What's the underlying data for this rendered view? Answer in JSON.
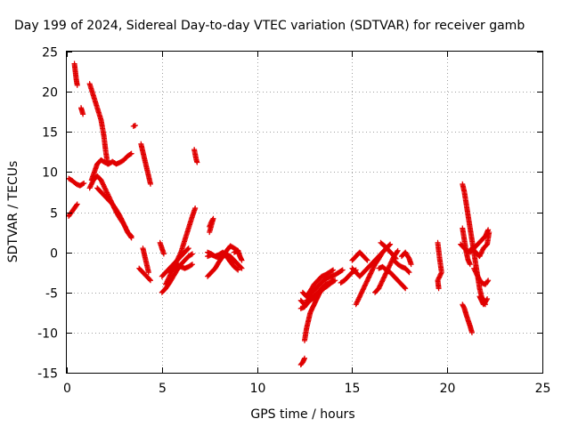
{
  "chart_data": {
    "type": "scatter",
    "title": "Day 199 of 2024, Sidereal Day-to-day VTEC variation (SDTVAR) for receiver gamb",
    "xlabel": "GPS time / hours",
    "ylabel": "SDTVAR / TECUs",
    "xlim": [
      0,
      25
    ],
    "ylim": [
      -15,
      25
    ],
    "xticks": [
      "0",
      "5",
      "10",
      "15",
      "20",
      "25"
    ],
    "yticks": [
      "-15",
      "-10",
      "-5",
      "0",
      "5",
      "10",
      "15",
      "20",
      "25"
    ],
    "grid": true,
    "marker": "+",
    "color": "#e00000",
    "segments": [
      [
        [
          0.4,
          23.5
        ],
        [
          0.45,
          22.5
        ],
        [
          0.5,
          21.5
        ],
        [
          0.55,
          20.8
        ]
      ],
      [
        [
          0.75,
          18.0
        ],
        [
          0.85,
          17.2
        ]
      ],
      [
        [
          0.1,
          9.2
        ],
        [
          0.3,
          8.9
        ],
        [
          0.5,
          8.5
        ],
        [
          0.7,
          8.3
        ],
        [
          0.9,
          8.6
        ]
      ],
      [
        [
          0.1,
          4.5
        ],
        [
          0.25,
          5.0
        ],
        [
          0.4,
          5.5
        ],
        [
          0.55,
          6.0
        ]
      ],
      [
        [
          1.2,
          21.0
        ],
        [
          1.4,
          19.5
        ],
        [
          1.6,
          18.0
        ],
        [
          1.8,
          16.5
        ],
        [
          1.95,
          14.5
        ],
        [
          2.05,
          12.5
        ],
        [
          2.15,
          11.0
        ]
      ],
      [
        [
          1.3,
          9.0
        ],
        [
          1.45,
          10.0
        ],
        [
          1.6,
          11.0
        ],
        [
          1.8,
          11.5
        ],
        [
          2.0,
          11.2
        ],
        [
          2.2,
          11.0
        ],
        [
          2.4,
          11.3
        ],
        [
          2.6,
          11.0
        ],
        [
          2.8,
          11.2
        ],
        [
          3.0,
          11.5
        ],
        [
          3.2,
          12.0
        ],
        [
          3.4,
          12.3
        ]
      ],
      [
        [
          1.2,
          8.0
        ],
        [
          1.4,
          9.0
        ],
        [
          1.6,
          9.5
        ],
        [
          1.8,
          9.0
        ],
        [
          2.0,
          8.0
        ],
        [
          2.2,
          7.0
        ],
        [
          2.4,
          6.0
        ],
        [
          2.6,
          5.0
        ],
        [
          2.8,
          4.2
        ],
        [
          3.0,
          3.5
        ],
        [
          3.2,
          2.5
        ],
        [
          3.4,
          1.8
        ]
      ],
      [
        [
          1.6,
          8.0
        ],
        [
          1.8,
          7.5
        ],
        [
          2.0,
          7.0
        ],
        [
          2.2,
          6.5
        ],
        [
          2.4,
          6.0
        ],
        [
          2.6,
          5.3
        ],
        [
          2.8,
          4.5
        ],
        [
          3.0,
          3.5
        ],
        [
          3.2,
          2.5
        ],
        [
          3.4,
          2.0
        ]
      ],
      [
        [
          3.5,
          15.7
        ],
        [
          3.6,
          15.8
        ]
      ],
      [
        [
          3.9,
          13.5
        ],
        [
          4.0,
          12.5
        ],
        [
          4.1,
          11.5
        ],
        [
          4.2,
          10.5
        ],
        [
          4.3,
          9.5
        ],
        [
          4.4,
          8.5
        ]
      ],
      [
        [
          3.8,
          -2.0
        ],
        [
          4.0,
          -2.5
        ],
        [
          4.2,
          -3.0
        ],
        [
          4.4,
          -3.5
        ]
      ],
      [
        [
          4.0,
          0.5
        ],
        [
          4.1,
          -0.5
        ],
        [
          4.2,
          -1.5
        ],
        [
          4.3,
          -2.5
        ]
      ],
      [
        [
          4.9,
          1.2
        ],
        [
          5.0,
          0.5
        ],
        [
          5.1,
          -0.2
        ]
      ],
      [
        [
          5.0,
          -5.0
        ],
        [
          5.2,
          -4.5
        ],
        [
          5.4,
          -3.8
        ],
        [
          5.6,
          -3.0
        ],
        [
          5.8,
          -2.2
        ],
        [
          6.0,
          -1.5
        ],
        [
          6.2,
          -1.0
        ],
        [
          6.4,
          -0.5
        ],
        [
          6.6,
          -0.2
        ]
      ],
      [
        [
          5.0,
          -3.0
        ],
        [
          5.2,
          -2.5
        ],
        [
          5.4,
          -2.0
        ],
        [
          5.6,
          -1.5
        ],
        [
          5.8,
          -1.0
        ],
        [
          6.0,
          -0.5
        ],
        [
          6.2,
          0.0
        ],
        [
          6.4,
          0.5
        ]
      ],
      [
        [
          5.2,
          -4.0
        ],
        [
          5.4,
          -3.0
        ],
        [
          5.6,
          -2.0
        ],
        [
          5.8,
          -1.0
        ],
        [
          6.0,
          0.0
        ],
        [
          6.2,
          1.5
        ],
        [
          6.4,
          3.0
        ],
        [
          6.6,
          4.5
        ],
        [
          6.75,
          5.5
        ]
      ],
      [
        [
          5.4,
          -2.5
        ],
        [
          5.6,
          -2.0
        ],
        [
          5.8,
          -1.5
        ],
        [
          6.0,
          -1.8
        ],
        [
          6.2,
          -2.0
        ],
        [
          6.4,
          -1.8
        ],
        [
          6.6,
          -1.5
        ]
      ],
      [
        [
          6.7,
          12.8
        ],
        [
          6.75,
          12.2
        ],
        [
          6.8,
          11.6
        ],
        [
          6.85,
          11.2
        ]
      ],
      [
        [
          7.5,
          3.2
        ],
        [
          7.6,
          3.8
        ],
        [
          7.7,
          4.2
        ],
        [
          7.5,
          2.5
        ]
      ],
      [
        [
          7.4,
          -3.0
        ],
        [
          7.6,
          -2.5
        ],
        [
          7.8,
          -2.0
        ],
        [
          8.0,
          -1.2
        ],
        [
          8.2,
          -0.5
        ],
        [
          8.4,
          0.2
        ],
        [
          8.6,
          0.8
        ],
        [
          8.8,
          0.5
        ],
        [
          9.0,
          0.2
        ]
      ],
      [
        [
          7.4,
          -0.5
        ],
        [
          7.6,
          -0.3
        ],
        [
          7.8,
          -0.5
        ],
        [
          8.0,
          -0.7
        ],
        [
          8.2,
          -0.5
        ],
        [
          8.4,
          -0.3
        ],
        [
          8.6,
          -0.5
        ],
        [
          8.8,
          -1.0
        ],
        [
          9.0,
          -1.5
        ],
        [
          9.2,
          -2.0
        ]
      ],
      [
        [
          7.4,
          0.0
        ],
        [
          7.6,
          -0.2
        ],
        [
          7.8,
          -0.5
        ],
        [
          8.0,
          -0.3
        ],
        [
          8.2,
          0.0
        ],
        [
          8.4,
          -0.5
        ],
        [
          8.6,
          -1.2
        ],
        [
          8.8,
          -1.8
        ],
        [
          9.0,
          -2.2
        ]
      ],
      [
        [
          8.8,
          0.0
        ],
        [
          9.0,
          0.2
        ],
        [
          9.1,
          -0.5
        ],
        [
          9.2,
          -1.0
        ]
      ],
      [
        [
          12.3,
          -14.0
        ],
        [
          12.4,
          -13.7
        ],
        [
          12.5,
          -13.2
        ]
      ],
      [
        [
          12.5,
          -11.0
        ],
        [
          12.6,
          -9.5
        ],
        [
          12.7,
          -8.5
        ],
        [
          12.8,
          -7.5
        ],
        [
          12.9,
          -7.0
        ],
        [
          13.0,
          -6.5
        ],
        [
          13.1,
          -6.0
        ],
        [
          13.2,
          -5.5
        ],
        [
          13.3,
          -5.0
        ],
        [
          13.4,
          -4.8
        ]
      ],
      [
        [
          12.3,
          -6.0
        ],
        [
          12.5,
          -6.5
        ],
        [
          12.7,
          -6.0
        ],
        [
          12.9,
          -5.0
        ],
        [
          13.1,
          -4.5
        ],
        [
          13.3,
          -4.0
        ],
        [
          13.5,
          -3.5
        ],
        [
          13.7,
          -3.2
        ],
        [
          13.9,
          -3.0
        ],
        [
          14.1,
          -2.8
        ],
        [
          14.3,
          -2.5
        ],
        [
          14.5,
          -2.2
        ]
      ],
      [
        [
          12.3,
          -7.0
        ],
        [
          12.5,
          -6.8
        ],
        [
          12.7,
          -6.2
        ],
        [
          12.9,
          -5.8
        ],
        [
          13.1,
          -5.5
        ],
        [
          13.3,
          -5.0
        ],
        [
          13.5,
          -4.5
        ],
        [
          13.7,
          -4.2
        ],
        [
          13.9,
          -3.8
        ],
        [
          14.1,
          -3.5
        ]
      ],
      [
        [
          12.4,
          -5.0
        ],
        [
          12.6,
          -5.5
        ],
        [
          12.8,
          -4.8
        ],
        [
          13.0,
          -4.0
        ],
        [
          13.2,
          -3.5
        ],
        [
          13.4,
          -3.0
        ],
        [
          13.6,
          -2.8
        ],
        [
          13.8,
          -2.5
        ],
        [
          14.0,
          -2.2
        ]
      ],
      [
        [
          12.6,
          -6.0
        ],
        [
          12.8,
          -5.8
        ],
        [
          13.0,
          -5.5
        ],
        [
          13.2,
          -5.0
        ],
        [
          13.4,
          -4.5
        ],
        [
          13.6,
          -4.0
        ],
        [
          13.8,
          -3.8
        ],
        [
          14.0,
          -3.5
        ]
      ],
      [
        [
          14.4,
          -3.8
        ],
        [
          14.6,
          -3.5
        ],
        [
          14.8,
          -3.0
        ],
        [
          15.0,
          -2.5
        ],
        [
          15.2,
          -2.2
        ]
      ],
      [
        [
          15.0,
          -1.0
        ],
        [
          15.2,
          -0.5
        ],
        [
          15.4,
          0.0
        ],
        [
          15.6,
          -0.5
        ],
        [
          15.8,
          -1.0
        ]
      ],
      [
        [
          15.0,
          -2.0
        ],
        [
          15.2,
          -2.5
        ],
        [
          15.4,
          -3.0
        ],
        [
          15.6,
          -2.5
        ],
        [
          15.8,
          -2.0
        ],
        [
          16.0,
          -1.5
        ],
        [
          16.2,
          -1.0
        ],
        [
          16.4,
          -0.5
        ],
        [
          16.6,
          0.0
        ],
        [
          16.8,
          0.5
        ],
        [
          17.0,
          1.0
        ]
      ],
      [
        [
          15.2,
          -6.5
        ],
        [
          15.4,
          -5.5
        ],
        [
          15.6,
          -4.5
        ],
        [
          15.8,
          -3.5
        ],
        [
          16.0,
          -2.5
        ],
        [
          16.2,
          -1.5
        ],
        [
          16.4,
          -0.8
        ],
        [
          16.6,
          0.0
        ],
        [
          16.8,
          0.5
        ]
      ],
      [
        [
          16.2,
          -5.0
        ],
        [
          16.4,
          -4.5
        ],
        [
          16.6,
          -3.5
        ],
        [
          16.8,
          -2.5
        ],
        [
          17.0,
          -1.5
        ],
        [
          17.2,
          -0.5
        ],
        [
          17.4,
          0.2
        ]
      ],
      [
        [
          16.4,
          -2.0
        ],
        [
          16.6,
          -1.8
        ],
        [
          16.8,
          -2.2
        ],
        [
          17.0,
          -2.5
        ],
        [
          17.2,
          -3.0
        ],
        [
          17.4,
          -3.5
        ],
        [
          17.6,
          -4.0
        ],
        [
          17.8,
          -4.5
        ]
      ],
      [
        [
          16.5,
          1.2
        ],
        [
          16.7,
          0.8
        ],
        [
          16.9,
          0.3
        ],
        [
          17.1,
          -0.2
        ],
        [
          17.3,
          -0.8
        ]
      ],
      [
        [
          17.2,
          -1.0
        ],
        [
          17.4,
          -1.5
        ],
        [
          17.6,
          -1.8
        ],
        [
          17.8,
          -2.0
        ],
        [
          18.0,
          -2.5
        ]
      ],
      [
        [
          17.6,
          -0.5
        ],
        [
          17.8,
          0.0
        ],
        [
          18.0,
          -0.8
        ],
        [
          18.1,
          -1.5
        ]
      ],
      [
        [
          19.5,
          1.2
        ],
        [
          19.6,
          -0.8
        ],
        [
          19.7,
          -2.5
        ],
        [
          19.5,
          -3.5
        ],
        [
          19.55,
          -4.5
        ]
      ],
      [
        [
          20.8,
          8.5
        ],
        [
          20.9,
          7.5
        ],
        [
          21.0,
          6.0
        ],
        [
          21.1,
          4.5
        ],
        [
          21.2,
          3.0
        ],
        [
          21.3,
          1.5
        ],
        [
          21.4,
          0.0
        ],
        [
          21.5,
          -1.5
        ],
        [
          21.6,
          -3.0
        ],
        [
          21.7,
          -4.5
        ],
        [
          21.8,
          -5.5
        ],
        [
          21.9,
          -6.0
        ],
        [
          22.0,
          -6.5
        ]
      ],
      [
        [
          20.8,
          3.0
        ],
        [
          20.9,
          1.5
        ],
        [
          21.0,
          0.0
        ],
        [
          21.1,
          -1.0
        ],
        [
          21.2,
          -1.5
        ]
      ],
      [
        [
          20.7,
          1.0
        ],
        [
          20.9,
          0.5
        ],
        [
          21.1,
          0.0
        ],
        [
          21.3,
          0.5
        ],
        [
          21.5,
          0.0
        ],
        [
          21.7,
          -0.5
        ],
        [
          21.9,
          0.5
        ],
        [
          22.1,
          1.0
        ],
        [
          22.2,
          2.5
        ]
      ],
      [
        [
          21.2,
          0.0
        ],
        [
          21.4,
          0.5
        ],
        [
          21.6,
          1.0
        ],
        [
          21.8,
          1.5
        ],
        [
          22.0,
          2.0
        ],
        [
          22.15,
          2.8
        ]
      ],
      [
        [
          21.4,
          -2.0
        ],
        [
          21.6,
          -3.0
        ],
        [
          21.8,
          -3.8
        ],
        [
          22.0,
          -4.0
        ],
        [
          22.15,
          -3.5
        ]
      ],
      [
        [
          20.8,
          -6.5
        ],
        [
          20.9,
          -7.0
        ],
        [
          21.0,
          -7.8
        ],
        [
          21.1,
          -8.5
        ],
        [
          21.2,
          -9.2
        ],
        [
          21.3,
          -10.0
        ]
      ],
      [
        [
          21.7,
          -5.5
        ],
        [
          21.8,
          -6.0
        ],
        [
          21.9,
          -6.5
        ],
        [
          22.0,
          -6.2
        ],
        [
          22.1,
          -5.8
        ]
      ]
    ]
  }
}
